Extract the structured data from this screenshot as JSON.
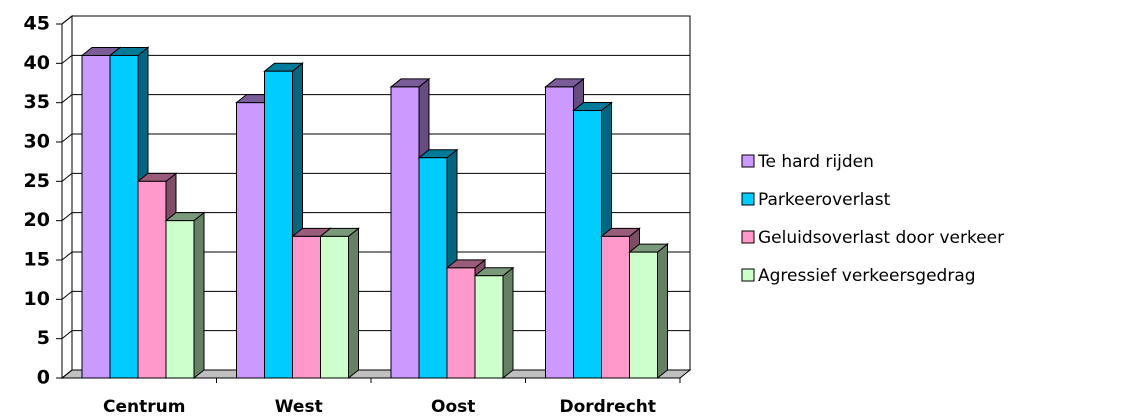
{
  "chart_data": {
    "type": "bar3d",
    "categories": [
      "Centrum",
      "West",
      "Oost",
      "Dordrecht"
    ],
    "series": [
      {
        "name": "Te hard rijden",
        "color": "#cc99ff",
        "values": [
          41,
          35,
          37,
          37
        ]
      },
      {
        "name": "Parkeeroverlast",
        "color": "#00ccff",
        "values": [
          41,
          39,
          28,
          34
        ]
      },
      {
        "name": "Geluidsoverlast door verkeer",
        "color": "#ff99cc",
        "values": [
          25,
          18,
          14,
          18
        ]
      },
      {
        "name": "Agressief verkeersgedrag",
        "color": "#ccffcc",
        "values": [
          20,
          18,
          13,
          16
        ]
      }
    ],
    "ylim": [
      0,
      45
    ],
    "yticks": [
      0,
      5,
      10,
      15,
      20,
      25,
      30,
      35,
      40,
      45
    ],
    "grid": true,
    "legend": "right"
  }
}
